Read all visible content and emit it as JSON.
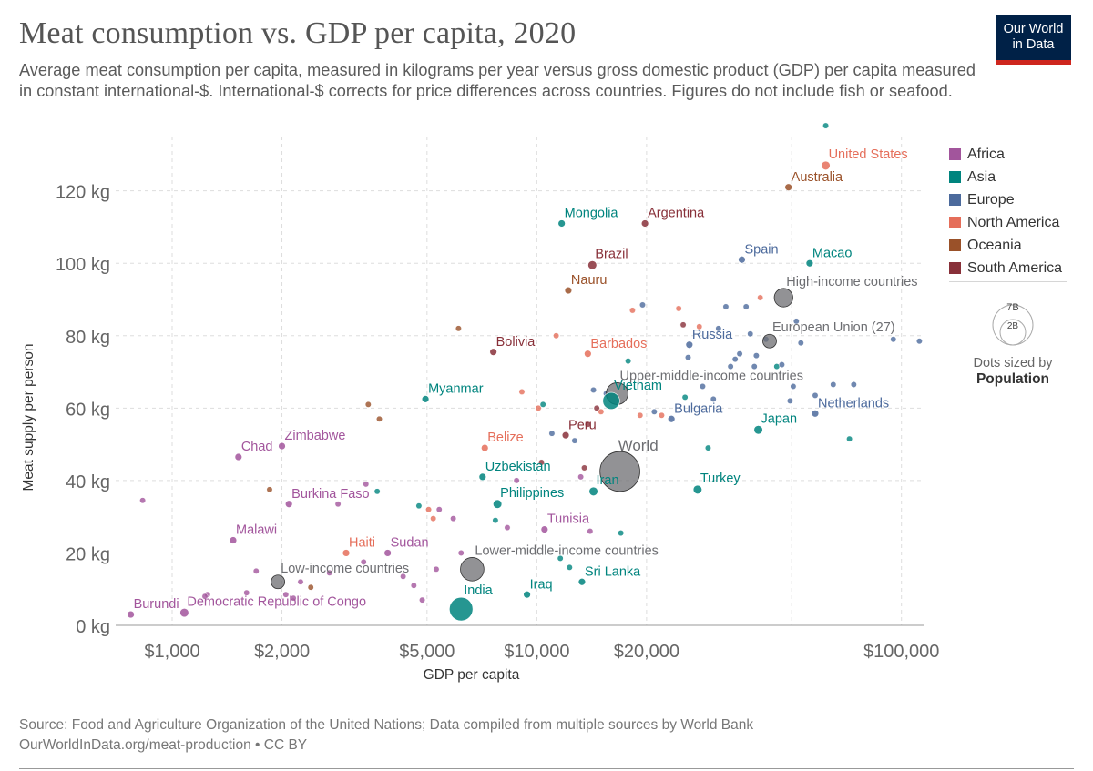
{
  "title": "Meat consumption vs. GDP per capita, 2020",
  "subtitle": "Average meat consumption per capita, measured in kilograms per year versus gross domestic product (GDP) per capita measured in constant international-$. International-$ corrects for price differences across countries. Figures do not include fish or seafood.",
  "logo": {
    "line1": "Our World",
    "line2": "in Data"
  },
  "legend": [
    {
      "name": "Africa",
      "color": "#a2559c"
    },
    {
      "name": "Asia",
      "color": "#00847e"
    },
    {
      "name": "Europe",
      "color": "#4c6a9c"
    },
    {
      "name": "North America",
      "color": "#e56e5a"
    },
    {
      "name": "Oceania",
      "color": "#9a5129"
    },
    {
      "name": "South America",
      "color": "#883039"
    }
  ],
  "size_legend": {
    "large": "7B",
    "small": "2B",
    "caption": "Dots sized by",
    "caption_bold": "Population"
  },
  "footer": {
    "source": "Source: Food and Agriculture Organization of the United Nations; Data compiled from multiple sources by World Bank",
    "credit": "OurWorldInData.org/meat-production • CC BY"
  },
  "chart_data": {
    "type": "scatter",
    "x_scale": "log",
    "xlabel": "GDP per capita",
    "ylabel": "Meat supply per person",
    "xlim": [
      700,
      115000
    ],
    "ylim": [
      0,
      135
    ],
    "x_ticks": [
      {
        "value": 1000,
        "label": "$1,000"
      },
      {
        "value": 2000,
        "label": "$2,000"
      },
      {
        "value": 5000,
        "label": "$5,000"
      },
      {
        "value": 10000,
        "label": "$10,000"
      },
      {
        "value": 20000,
        "label": "$20,000"
      },
      {
        "value": 100000,
        "label": "$100,000"
      }
    ],
    "x_grid_extra": [
      50000
    ],
    "y_ticks": [
      {
        "value": 0,
        "label": "0 kg"
      },
      {
        "value": 20,
        "label": "20 kg"
      },
      {
        "value": 40,
        "label": "40 kg"
      },
      {
        "value": 60,
        "label": "60 kg"
      },
      {
        "value": 80,
        "label": "80 kg"
      },
      {
        "value": 100,
        "label": "100 kg"
      },
      {
        "value": 120,
        "label": "120 kg"
      }
    ],
    "grid": true,
    "colors": {
      "Africa": "#a2559c",
      "Asia": "#00847e",
      "Europe": "#4c6a9c",
      "North America": "#e56e5a",
      "Oceania": "#9a5129",
      "South America": "#883039",
      "Aggregate": "#6d6e72"
    },
    "labeled_points": [
      {
        "label": "United States",
        "x": 62000,
        "y": 127,
        "group": "North America",
        "size": 2
      },
      {
        "label": "Australia",
        "x": 49000,
        "y": 121,
        "group": "Oceania",
        "size": 1
      },
      {
        "label": "Mongolia",
        "x": 11700,
        "y": 111,
        "group": "Asia",
        "size": 1
      },
      {
        "label": "Argentina",
        "x": 19800,
        "y": 111,
        "group": "South America",
        "size": 1
      },
      {
        "label": "Brazil",
        "x": 14200,
        "y": 99.5,
        "group": "South America",
        "size": 2
      },
      {
        "label": "Spain",
        "x": 36500,
        "y": 101,
        "group": "Europe",
        "size": 1
      },
      {
        "label": "Macao",
        "x": 56000,
        "y": 100,
        "group": "Asia",
        "size": 1
      },
      {
        "label": "Nauru",
        "x": 12200,
        "y": 92.5,
        "group": "Oceania",
        "size": 1
      },
      {
        "label": "High-income countries",
        "x": 47500,
        "y": 90.5,
        "group": "Aggregate",
        "size": 8
      },
      {
        "label": "European Union (27)",
        "x": 43500,
        "y": 78.5,
        "group": "Aggregate",
        "size": 5
      },
      {
        "label": "Russia",
        "x": 26200,
        "y": 77.5,
        "group": "Europe",
        "size": 1
      },
      {
        "label": "Bolivia",
        "x": 7600,
        "y": 75.5,
        "group": "South America",
        "size": 1
      },
      {
        "label": "Barbados",
        "x": 13800,
        "y": 75,
        "group": "North America",
        "size": 1
      },
      {
        "label": "Upper-middle-income countries",
        "x": 16600,
        "y": 64,
        "group": "Aggregate",
        "size": 10
      },
      {
        "label": "Myanmar",
        "x": 4950,
        "y": 62.5,
        "group": "Asia",
        "size": 1
      },
      {
        "label": "Vietnam",
        "x": 16000,
        "y": 62,
        "group": "Asia",
        "size": 7
      },
      {
        "label": "Bulgaria",
        "x": 23400,
        "y": 57,
        "group": "Europe",
        "size": 1
      },
      {
        "label": "Netherlands",
        "x": 58000,
        "y": 58.5,
        "group": "Europe",
        "size": 1
      },
      {
        "label": "Japan",
        "x": 40500,
        "y": 54,
        "group": "Asia",
        "size": 2
      },
      {
        "label": "Peru",
        "x": 12000,
        "y": 52.5,
        "group": "South America",
        "size": 1
      },
      {
        "label": "Chad",
        "x": 1520,
        "y": 46.5,
        "group": "Africa",
        "size": 1
      },
      {
        "label": "Zimbabwe",
        "x": 2000,
        "y": 49.5,
        "group": "Africa",
        "size": 1
      },
      {
        "label": "Belize",
        "x": 7200,
        "y": 49,
        "group": "North America",
        "size": 1
      },
      {
        "label": "World",
        "x": 16900,
        "y": 42.5,
        "group": "Aggregate",
        "size": 21
      },
      {
        "label": "Uzbekistan",
        "x": 7100,
        "y": 41,
        "group": "Asia",
        "size": 1
      },
      {
        "label": "Iran",
        "x": 14300,
        "y": 37,
        "group": "Asia",
        "size": 2
      },
      {
        "label": "Turkey",
        "x": 27600,
        "y": 37.5,
        "group": "Asia",
        "size": 2
      },
      {
        "label": "Philippines",
        "x": 7800,
        "y": 33.5,
        "group": "Asia",
        "size": 2
      },
      {
        "label": "Burkina Faso",
        "x": 2090,
        "y": 33.5,
        "group": "Africa",
        "size": 1
      },
      {
        "label": "Tunisia",
        "x": 10500,
        "y": 26.5,
        "group": "Africa",
        "size": 1
      },
      {
        "label": "Malawi",
        "x": 1470,
        "y": 23.5,
        "group": "Africa",
        "size": 1
      },
      {
        "label": "Haiti",
        "x": 3000,
        "y": 20,
        "group": "North America",
        "size": 1
      },
      {
        "label": "Sudan",
        "x": 3900,
        "y": 20,
        "group": "Africa",
        "size": 1
      },
      {
        "label": "Lower-middle-income countries",
        "x": 6650,
        "y": 15.5,
        "group": "Aggregate",
        "size": 11
      },
      {
        "label": "Low-income countries",
        "x": 1950,
        "y": 12,
        "group": "Aggregate",
        "size": 5
      },
      {
        "label": "Sri Lanka",
        "x": 13300,
        "y": 12,
        "group": "Asia",
        "size": 1
      },
      {
        "label": "Iraq",
        "x": 9400,
        "y": 8.5,
        "group": "Asia",
        "size": 1
      },
      {
        "label": "India",
        "x": 6200,
        "y": 4.5,
        "group": "Asia",
        "size": 11
      },
      {
        "label": "Burundi",
        "x": 770,
        "y": 3,
        "group": "Africa",
        "size": 1
      },
      {
        "label": "Democratic Republic of Congo",
        "x": 1080,
        "y": 3.5,
        "group": "Africa",
        "size": 2
      }
    ],
    "unlabeled_points": [
      {
        "x": 62000,
        "y": 138,
        "group": "Asia"
      },
      {
        "x": 830,
        "y": 34.5,
        "group": "Africa"
      },
      {
        "x": 1250,
        "y": 8.5,
        "group": "Africa"
      },
      {
        "x": 1230,
        "y": 8,
        "group": "Africa"
      },
      {
        "x": 1600,
        "y": 9,
        "group": "Africa"
      },
      {
        "x": 1700,
        "y": 15,
        "group": "Africa"
      },
      {
        "x": 1850,
        "y": 37.5,
        "group": "Oceania"
      },
      {
        "x": 2050,
        "y": 8.5,
        "group": "Africa"
      },
      {
        "x": 2150,
        "y": 7.5,
        "group": "Africa"
      },
      {
        "x": 2250,
        "y": 12,
        "group": "Africa"
      },
      {
        "x": 2400,
        "y": 10.5,
        "group": "Oceania"
      },
      {
        "x": 2700,
        "y": 14.5,
        "group": "Africa"
      },
      {
        "x": 2850,
        "y": 33.5,
        "group": "Africa"
      },
      {
        "x": 3400,
        "y": 39,
        "group": "Africa"
      },
      {
        "x": 3450,
        "y": 61,
        "group": "Oceania"
      },
      {
        "x": 3700,
        "y": 57,
        "group": "Oceania"
      },
      {
        "x": 3650,
        "y": 37,
        "group": "Asia"
      },
      {
        "x": 3350,
        "y": 17.5,
        "group": "Africa"
      },
      {
        "x": 4300,
        "y": 13.5,
        "group": "Africa"
      },
      {
        "x": 4600,
        "y": 11,
        "group": "Africa"
      },
      {
        "x": 4750,
        "y": 33,
        "group": "Asia"
      },
      {
        "x": 5050,
        "y": 32,
        "group": "North America"
      },
      {
        "x": 5400,
        "y": 32,
        "group": "Africa"
      },
      {
        "x": 5200,
        "y": 29.5,
        "group": "North America"
      },
      {
        "x": 5300,
        "y": 15.5,
        "group": "Africa"
      },
      {
        "x": 4850,
        "y": 7,
        "group": "Africa"
      },
      {
        "x": 5900,
        "y": 29.5,
        "group": "Africa"
      },
      {
        "x": 6100,
        "y": 82,
        "group": "Oceania"
      },
      {
        "x": 6200,
        "y": 20,
        "group": "Africa"
      },
      {
        "x": 7700,
        "y": 29,
        "group": "Asia"
      },
      {
        "x": 8300,
        "y": 27,
        "group": "Africa"
      },
      {
        "x": 8800,
        "y": 40,
        "group": "Africa"
      },
      {
        "x": 9100,
        "y": 64.5,
        "group": "North America"
      },
      {
        "x": 10100,
        "y": 60,
        "group": "North America"
      },
      {
        "x": 10300,
        "y": 45,
        "group": "South America"
      },
      {
        "x": 10400,
        "y": 61,
        "group": "Asia"
      },
      {
        "x": 11000,
        "y": 53,
        "group": "Europe"
      },
      {
        "x": 11300,
        "y": 80,
        "group": "North America"
      },
      {
        "x": 11600,
        "y": 18.5,
        "group": "Asia"
      },
      {
        "x": 12300,
        "y": 16,
        "group": "Asia"
      },
      {
        "x": 12700,
        "y": 51,
        "group": "Europe"
      },
      {
        "x": 13200,
        "y": 41,
        "group": "Africa"
      },
      {
        "x": 13500,
        "y": 43.5,
        "group": "South America"
      },
      {
        "x": 13800,
        "y": 55.5,
        "group": "South America"
      },
      {
        "x": 14000,
        "y": 26,
        "group": "Africa"
      },
      {
        "x": 14300,
        "y": 65,
        "group": "Europe"
      },
      {
        "x": 14600,
        "y": 60,
        "group": "South America"
      },
      {
        "x": 15000,
        "y": 59,
        "group": "North America"
      },
      {
        "x": 15500,
        "y": 64,
        "group": "Europe"
      },
      {
        "x": 17000,
        "y": 25.5,
        "group": "Asia"
      },
      {
        "x": 17800,
        "y": 73,
        "group": "Asia"
      },
      {
        "x": 18300,
        "y": 87,
        "group": "North America"
      },
      {
        "x": 19500,
        "y": 88.5,
        "group": "Europe"
      },
      {
        "x": 19200,
        "y": 58,
        "group": "North America"
      },
      {
        "x": 21000,
        "y": 59,
        "group": "Europe"
      },
      {
        "x": 22000,
        "y": 58,
        "group": "North America"
      },
      {
        "x": 24500,
        "y": 87.5,
        "group": "North America"
      },
      {
        "x": 25200,
        "y": 83,
        "group": "South America"
      },
      {
        "x": 25500,
        "y": 63,
        "group": "Asia"
      },
      {
        "x": 26000,
        "y": 74,
        "group": "Europe"
      },
      {
        "x": 27900,
        "y": 82.5,
        "group": "North America"
      },
      {
        "x": 28500,
        "y": 66,
        "group": "Europe"
      },
      {
        "x": 29500,
        "y": 49,
        "group": "Asia"
      },
      {
        "x": 30500,
        "y": 62.5,
        "group": "Europe"
      },
      {
        "x": 31500,
        "y": 82,
        "group": "Europe"
      },
      {
        "x": 33000,
        "y": 88,
        "group": "Europe"
      },
      {
        "x": 34000,
        "y": 71.5,
        "group": "Europe"
      },
      {
        "x": 35000,
        "y": 73.5,
        "group": "Europe"
      },
      {
        "x": 36000,
        "y": 75,
        "group": "Europe"
      },
      {
        "x": 37500,
        "y": 88,
        "group": "Europe"
      },
      {
        "x": 38500,
        "y": 80.5,
        "group": "Europe"
      },
      {
        "x": 39500,
        "y": 71.5,
        "group": "Europe"
      },
      {
        "x": 40000,
        "y": 74.5,
        "group": "Europe"
      },
      {
        "x": 41000,
        "y": 90.5,
        "group": "North America"
      },
      {
        "x": 42500,
        "y": 79,
        "group": "Europe"
      },
      {
        "x": 45500,
        "y": 71.5,
        "group": "Asia"
      },
      {
        "x": 47000,
        "y": 72,
        "group": "Europe"
      },
      {
        "x": 49500,
        "y": 62,
        "group": "Europe"
      },
      {
        "x": 50500,
        "y": 66,
        "group": "Europe"
      },
      {
        "x": 51500,
        "y": 84,
        "group": "Europe"
      },
      {
        "x": 53000,
        "y": 78,
        "group": "Europe"
      },
      {
        "x": 58000,
        "y": 63.5,
        "group": "Europe"
      },
      {
        "x": 65000,
        "y": 66.5,
        "group": "Europe"
      },
      {
        "x": 72000,
        "y": 51.5,
        "group": "Asia"
      },
      {
        "x": 74000,
        "y": 66.5,
        "group": "Europe"
      },
      {
        "x": 95000,
        "y": 79,
        "group": "Europe"
      },
      {
        "x": 112000,
        "y": 78.5,
        "group": "Europe"
      }
    ]
  }
}
